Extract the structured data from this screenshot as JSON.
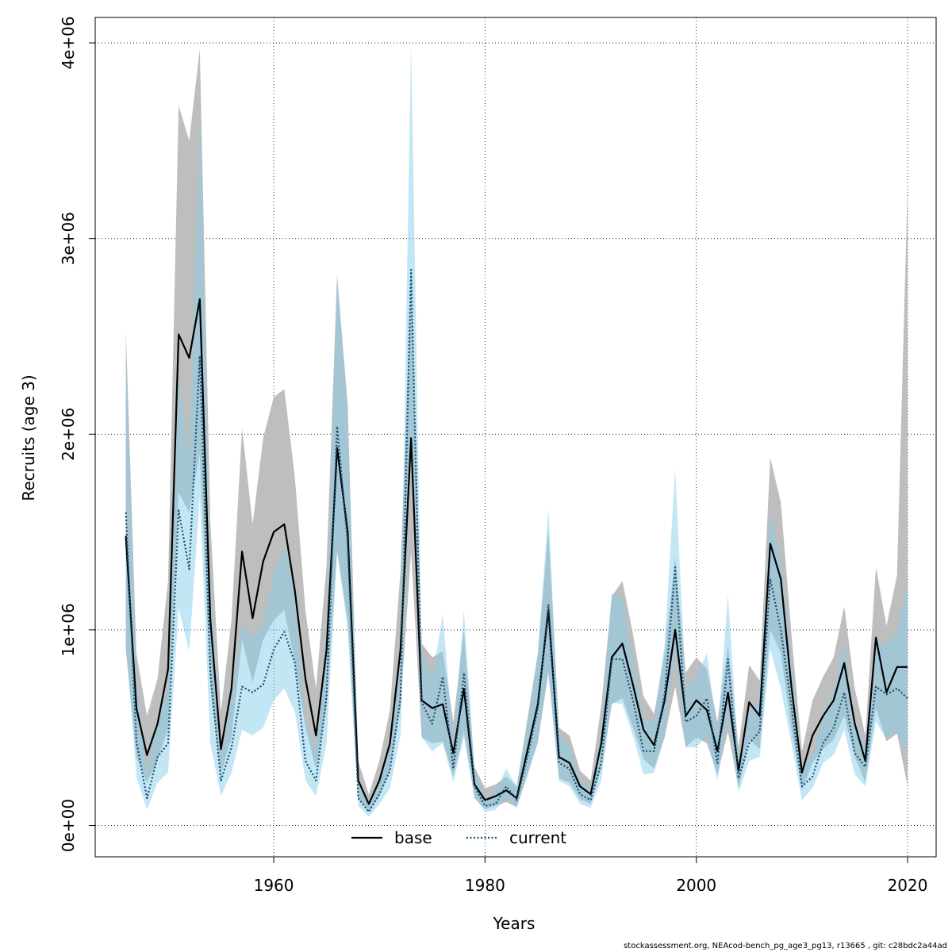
{
  "footer": "stockassessment.org, NEAcod-bench_pg_age3_pg13, r13665 , git: c28bdc2a44ad",
  "chart_data": {
    "type": "line",
    "title": "",
    "xlabel": "Years",
    "ylabel": "Recruits (age 3)",
    "xlim": [
      1943.1,
      2022.7
    ],
    "ylim": [
      -160000,
      4130000
    ],
    "xticks": [
      1960,
      1980,
      2000,
      2020
    ],
    "xtick_labels": [
      "1960",
      "1980",
      "2000",
      "2020"
    ],
    "yticks": [
      0,
      1000000,
      2000000,
      3000000,
      4000000
    ],
    "ytick_labels": [
      "0e+00",
      "1e+06",
      "2e+06",
      "3e+06",
      "4e+06"
    ],
    "grid": true,
    "legend_position": "bottom",
    "colors": {
      "base_band": "#bebebe",
      "current_band": "#87ceeb",
      "base_line": "#000000",
      "current_line": "#1a4e6e"
    },
    "x": [
      1946,
      1947,
      1948,
      1949,
      1950,
      1951,
      1952,
      1953,
      1954,
      1955,
      1956,
      1957,
      1958,
      1959,
      1960,
      1961,
      1962,
      1963,
      1964,
      1965,
      1966,
      1967,
      1968,
      1969,
      1970,
      1971,
      1972,
      1973,
      1974,
      1975,
      1976,
      1977,
      1978,
      1979,
      1980,
      1981,
      1982,
      1983,
      1984,
      1985,
      1986,
      1987,
      1988,
      1989,
      1990,
      1991,
      1992,
      1993,
      1994,
      1995,
      1996,
      1997,
      1998,
      1999,
      2000,
      2001,
      2002,
      2003,
      2004,
      2005,
      2006,
      2007,
      2008,
      2009,
      2010,
      2011,
      2012,
      2013,
      2014,
      2015,
      2016,
      2017,
      2018,
      2019,
      2020
    ],
    "series": [
      {
        "name": "base",
        "style": "solid",
        "values": [
          1480000,
          600000,
          360000,
          520000,
          800000,
          2510000,
          2390000,
          2690000,
          1050000,
          390000,
          700000,
          1400000,
          1060000,
          1350000,
          1500000,
          1540000,
          1200000,
          750000,
          460000,
          900000,
          1930000,
          1500000,
          230000,
          110000,
          230000,
          420000,
          900000,
          1980000,
          640000,
          600000,
          620000,
          370000,
          700000,
          210000,
          130000,
          150000,
          180000,
          140000,
          380000,
          620000,
          1100000,
          350000,
          320000,
          200000,
          160000,
          420000,
          860000,
          930000,
          720000,
          490000,
          410000,
          640000,
          1000000,
          560000,
          640000,
          590000,
          380000,
          680000,
          280000,
          630000,
          560000,
          1440000,
          1260000,
          710000,
          270000,
          460000,
          560000,
          640000,
          830000,
          520000,
          330000,
          960000,
          680000,
          810000,
          810000
        ],
        "lower": [
          900000,
          350000,
          220000,
          330000,
          500000,
          1700000,
          1600000,
          1900000,
          700000,
          260000,
          450000,
          950000,
          730000,
          950000,
          1050000,
          1100000,
          830000,
          500000,
          290000,
          600000,
          1400000,
          1050000,
          140000,
          70000,
          150000,
          280000,
          600000,
          1400000,
          450000,
          420000,
          430000,
          250000,
          480000,
          140000,
          85000,
          100000,
          120000,
          95000,
          260000,
          430000,
          780000,
          240000,
          220000,
          135000,
          110000,
          290000,
          620000,
          650000,
          500000,
          340000,
          290000,
          450000,
          710000,
          400000,
          450000,
          420000,
          260000,
          480000,
          190000,
          440000,
          390000,
          1000000,
          880000,
          490000,
          180000,
          320000,
          390000,
          440000,
          560000,
          350000,
          220000,
          600000,
          430000,
          470000,
          200000
        ],
        "upper": [
          2530000,
          880000,
          560000,
          750000,
          1250000,
          3680000,
          3500000,
          3970000,
          1550000,
          580000,
          1050000,
          2030000,
          1540000,
          1980000,
          2190000,
          2230000,
          1780000,
          1100000,
          700000,
          1330000,
          2810000,
          2150000,
          330000,
          160000,
          330000,
          590000,
          1300000,
          2820000,
          930000,
          860000,
          890000,
          530000,
          1000000,
          300000,
          190000,
          210000,
          250000,
          200000,
          540000,
          880000,
          1510000,
          500000,
          460000,
          280000,
          230000,
          610000,
          1170000,
          1250000,
          980000,
          660000,
          570000,
          880000,
          1370000,
          780000,
          860000,
          800000,
          530000,
          920000,
          400000,
          820000,
          740000,
          1880000,
          1650000,
          980000,
          380000,
          640000,
          760000,
          860000,
          1120000,
          700000,
          460000,
          1320000,
          1020000,
          1280000,
          3270000
        ]
      },
      {
        "name": "current",
        "style": "dotted",
        "values": [
          1600000,
          430000,
          140000,
          350000,
          420000,
          1610000,
          1310000,
          2400000,
          780000,
          230000,
          400000,
          710000,
          680000,
          720000,
          900000,
          990000,
          830000,
          330000,
          230000,
          660000,
          2040000,
          1440000,
          140000,
          70000,
          160000,
          280000,
          650000,
          2840000,
          630000,
          520000,
          760000,
          290000,
          780000,
          200000,
          100000,
          110000,
          200000,
          130000,
          350000,
          600000,
          1130000,
          320000,
          290000,
          160000,
          130000,
          320000,
          850000,
          850000,
          640000,
          380000,
          380000,
          670000,
          1320000,
          530000,
          560000,
          650000,
          320000,
          850000,
          240000,
          420000,
          480000,
          1260000,
          1000000,
          610000,
          200000,
          250000,
          420000,
          500000,
          680000,
          370000,
          300000,
          710000,
          670000,
          700000,
          650000
        ],
        "lower": [
          940000,
          250000,
          80000,
          220000,
          270000,
          1110000,
          890000,
          1680000,
          420000,
          150000,
          270000,
          490000,
          460000,
          500000,
          640000,
          700000,
          580000,
          230000,
          150000,
          420000,
          1400000,
          1000000,
          100000,
          45000,
          110000,
          190000,
          460000,
          2000000,
          450000,
          380000,
          420000,
          220000,
          450000,
          150000,
          70000,
          80000,
          140000,
          90000,
          250000,
          420000,
          780000,
          230000,
          200000,
          110000,
          90000,
          230000,
          630000,
          620000,
          460000,
          260000,
          270000,
          450000,
          910000,
          400000,
          400000,
          460000,
          230000,
          560000,
          170000,
          330000,
          350000,
          900000,
          700000,
          420000,
          130000,
          190000,
          320000,
          360000,
          490000,
          260000,
          200000,
          530000,
          440000,
          480000,
          360000
        ],
        "upper": [
          2420000,
          740000,
          260000,
          560000,
          690000,
          2280000,
          1900000,
          3620000,
          1270000,
          390000,
          650000,
          1030000,
          960000,
          1030000,
          1290000,
          1430000,
          1180000,
          530000,
          380000,
          1000000,
          2820000,
          2100000,
          220000,
          110000,
          250000,
          420000,
          920000,
          4000000,
          900000,
          750000,
          1080000,
          430000,
          1100000,
          290000,
          140000,
          170000,
          290000,
          200000,
          510000,
          880000,
          1620000,
          460000,
          410000,
          230000,
          190000,
          480000,
          1190000,
          1160000,
          850000,
          540000,
          530000,
          930000,
          1820000,
          700000,
          760000,
          880000,
          470000,
          1180000,
          340000,
          580000,
          650000,
          1600000,
          1360000,
          840000,
          300000,
          360000,
          560000,
          690000,
          940000,
          520000,
          410000,
          950000,
          920000,
          990000,
          1250000
        ]
      }
    ]
  }
}
